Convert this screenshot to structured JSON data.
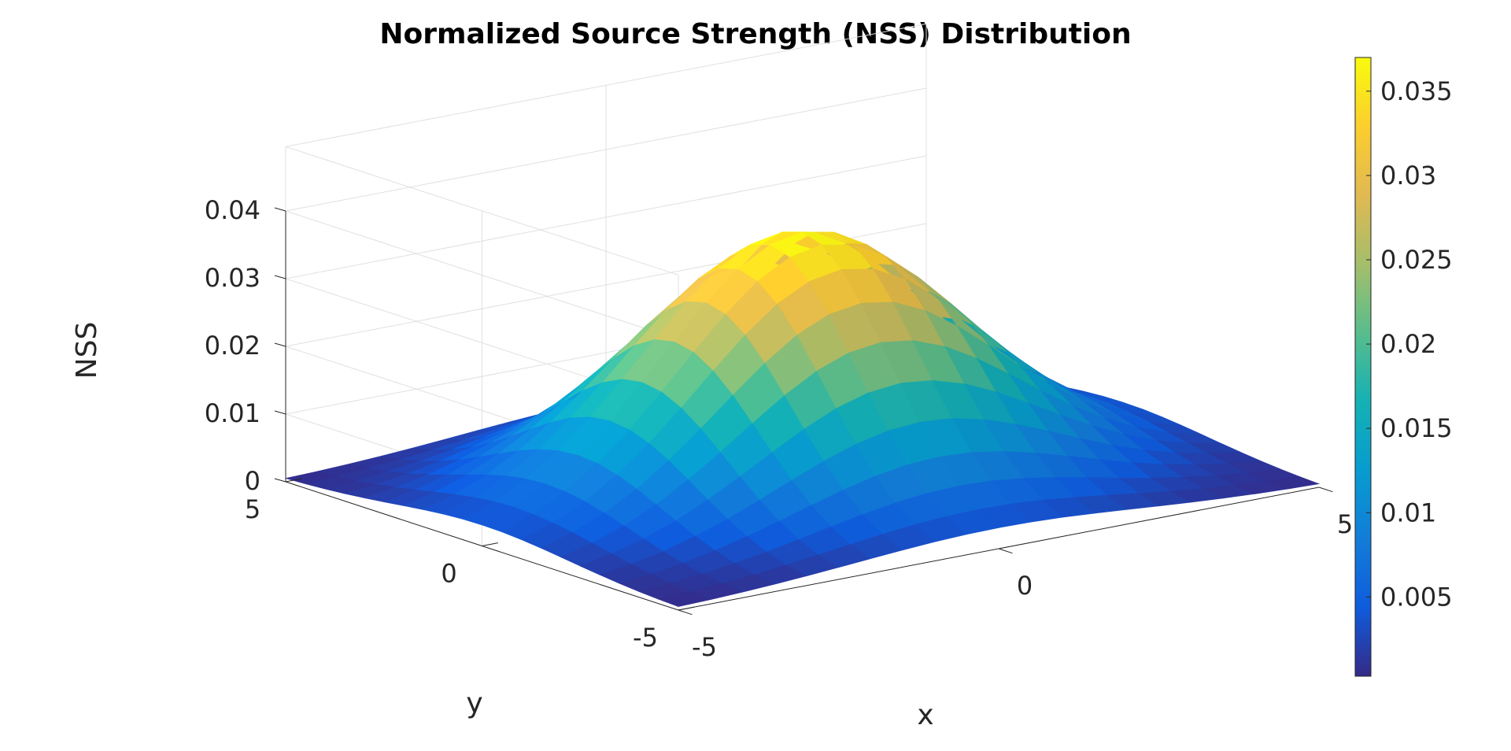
{
  "chart_data": {
    "type": "surface3d",
    "title": "Normalized Source Strength (NSS) Distribution",
    "xlabel": "x",
    "ylabel": "y",
    "zlabel": "NSS",
    "xlim": [
      -5,
      5
    ],
    "ylim": [
      -5,
      5
    ],
    "zlim": [
      0,
      0.04
    ],
    "x_ticks": [
      "-5",
      "0",
      "5"
    ],
    "y_ticks": [
      "-5",
      "0",
      "5"
    ],
    "z_ticks": [
      "0",
      "0.01",
      "0.02",
      "0.03",
      "0.04"
    ],
    "colorbar": {
      "range": [
        0.0003,
        0.037
      ],
      "ticks": [
        "0.005",
        "0.01",
        "0.015",
        "0.02",
        "0.025",
        "0.03",
        "0.035"
      ],
      "colormap": "parula",
      "location": "right"
    },
    "grid": true,
    "surface": {
      "x_range": [
        -5,
        5
      ],
      "y_range": [
        -5,
        5
      ],
      "samples": 21,
      "peak": 0.037,
      "peak_location": [
        0,
        0
      ],
      "corner_value": 0.0003,
      "shape": "bell-shaped peak centered at origin, decaying to near zero at the edges"
    }
  }
}
